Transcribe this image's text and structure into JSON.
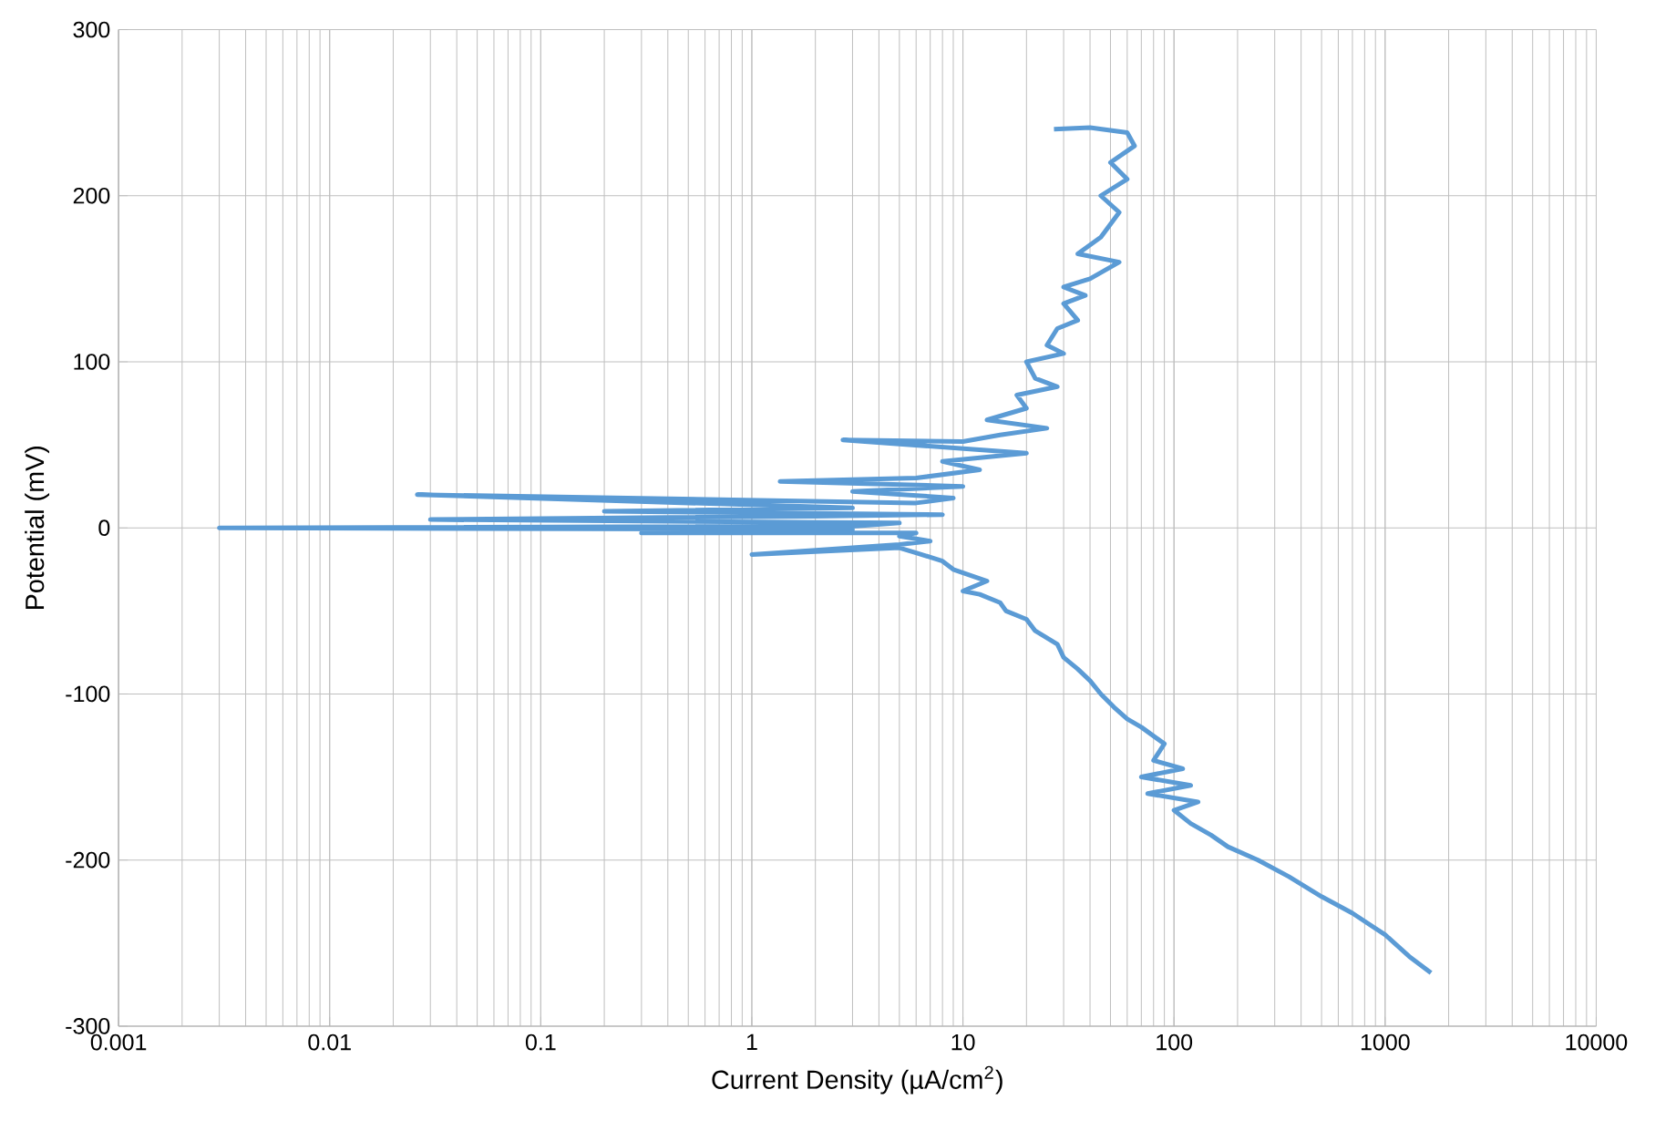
{
  "chart_data": {
    "type": "line",
    "xlabel": "Current Density (µA/cm$^{2}$)",
    "ylabel": "Potential (mV)",
    "log": "x",
    "grid": true,
    "marker": "none",
    "line_style": "solid",
    "xlim": [
      0.001,
      10000
    ],
    "xticks": [
      0.001,
      0.01,
      0.1,
      1,
      10,
      100,
      1000,
      10000
    ],
    "ylim": [
      -300,
      300
    ],
    "yticks": [
      -300,
      -200,
      -100,
      0,
      100,
      200,
      300
    ],
    "series": [
      {
        "color": "#5b9bd5",
        "x": [
          1650,
          1300,
          1000,
          700,
          500,
          350,
          250,
          180,
          150,
          120,
          100,
          130,
          75,
          120,
          70,
          110,
          80,
          90,
          70,
          60,
          52,
          45,
          40,
          35,
          30,
          28,
          22,
          20,
          16,
          15,
          12,
          10,
          13,
          9,
          8,
          6,
          5,
          1,
          5,
          7,
          5,
          6,
          0.3,
          3,
          0.003,
          3,
          5,
          0.03,
          2,
          8,
          0.2,
          3,
          0.026,
          6,
          9,
          3,
          10,
          1.36,
          6,
          12,
          8,
          20,
          2.7,
          10,
          15,
          25,
          13,
          20,
          18,
          28,
          22,
          20,
          30,
          25,
          28,
          35,
          30,
          38,
          30,
          40,
          55,
          35,
          45,
          55,
          45,
          60,
          50,
          65,
          60,
          40,
          27
        ],
        "values": [
          -268,
          -258,
          -245,
          -232,
          -222,
          -210,
          -200,
          -192,
          -185,
          -178,
          -170,
          -165,
          -160,
          -155,
          -150,
          -145,
          -140,
          -130,
          -120,
          -115,
          -108,
          -100,
          -92,
          -85,
          -78,
          -70,
          -62,
          -55,
          -50,
          -45,
          -40,
          -38,
          -32,
          -25,
          -20,
          -15,
          -12,
          -16,
          -10,
          -8,
          -5,
          -3,
          -3,
          -1,
          0,
          1,
          3,
          5,
          7,
          8,
          10,
          12,
          20,
          15,
          18,
          22,
          25,
          28,
          30,
          35,
          40,
          45,
          53,
          52,
          56,
          60,
          65,
          72,
          80,
          85,
          90,
          100,
          105,
          110,
          120,
          125,
          135,
          140,
          145,
          150,
          160,
          165,
          175,
          190,
          200,
          210,
          220,
          230,
          238,
          241,
          240
        ]
      }
    ]
  }
}
